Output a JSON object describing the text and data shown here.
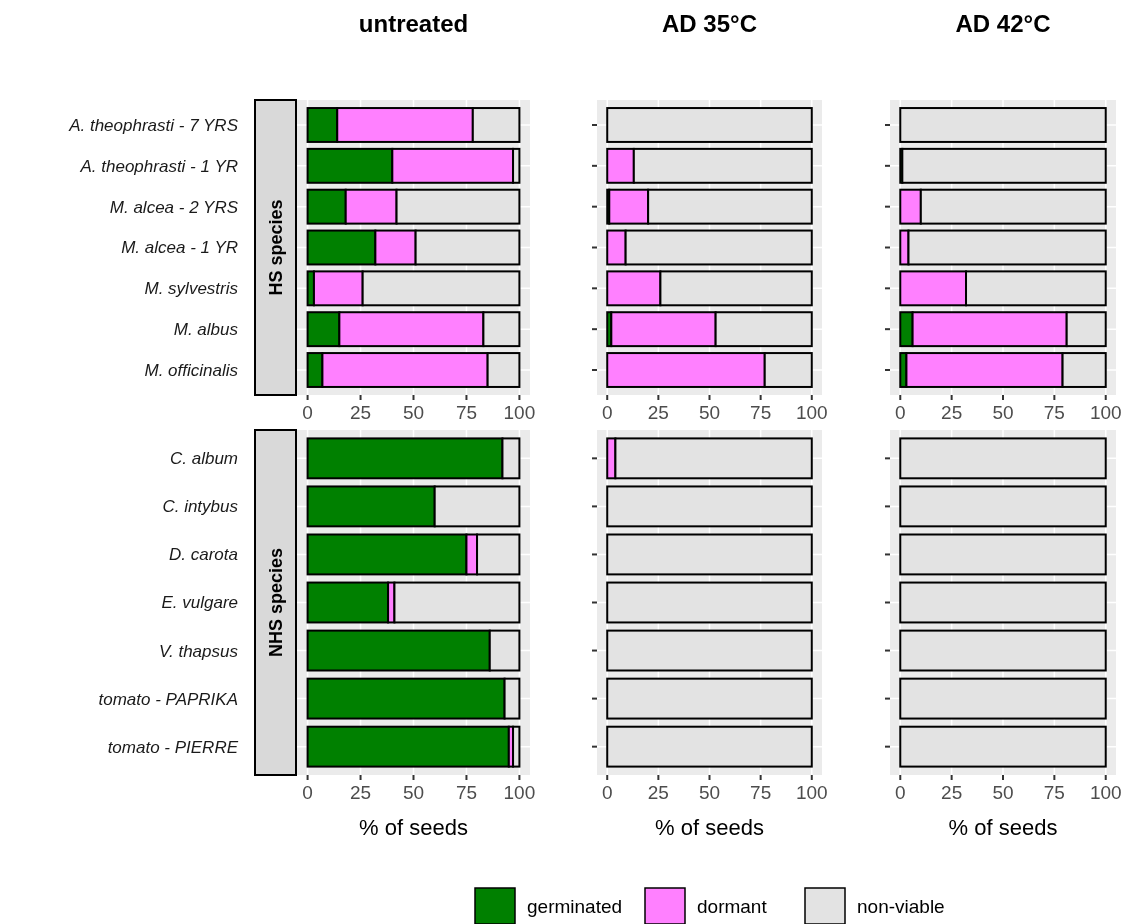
{
  "chart_data": [
    {
      "type": "bar",
      "orientation": "horizontal",
      "stacked": true,
      "title": "untreated",
      "ylabel": "HS species",
      "categories": [
        "A. theophrasti - 7 YRS",
        "A. theophrasti - 1 YR",
        "M. alcea - 2 YRS",
        "M. alcea - 1 YR",
        "M. sylvestris",
        "M. albus",
        "M. officinalis"
      ],
      "xlim": [
        -5,
        105
      ],
      "xticks": [
        0,
        25,
        50,
        75,
        100
      ],
      "grid": true,
      "legend": "bottom",
      "series": [
        {
          "name": "germinated",
          "color": "#008000",
          "values": [
            14,
            40,
            18,
            32,
            3,
            15,
            7
          ]
        },
        {
          "name": "dormant",
          "color": "#ff80ff",
          "values": [
            64,
            57,
            24,
            19,
            23,
            68,
            78
          ]
        },
        {
          "name": "non-viable",
          "color": "#e3e3e3",
          "values": [
            22,
            3,
            58,
            49,
            74,
            17,
            15
          ]
        }
      ]
    },
    {
      "type": "bar",
      "orientation": "horizontal",
      "stacked": true,
      "title": "AD 35°C",
      "categories": [
        null,
        null,
        null,
        null,
        null,
        null,
        null
      ],
      "tick_labels": "x",
      "xlim": [
        -5,
        105
      ],
      "xticks": [
        0,
        25,
        50,
        75,
        100
      ],
      "grid": true,
      "series": [
        {
          "color": "#008000",
          "values": [
            0,
            0,
            1,
            0,
            0,
            2,
            0
          ]
        },
        {
          "color": "#ff80ff",
          "values": [
            0,
            13,
            19,
            9,
            26,
            51,
            77
          ]
        },
        {
          "color": "#e3e3e3",
          "values": [
            100,
            87,
            80,
            91,
            74,
            47,
            23
          ]
        }
      ]
    },
    {
      "type": "bar",
      "orientation": "horizontal",
      "stacked": true,
      "title": "AD 42°C",
      "categories": [
        null,
        null,
        null,
        null,
        null,
        null,
        null
      ],
      "tick_labels": "x",
      "xlim": [
        -5,
        105
      ],
      "xticks": [
        0,
        25,
        50,
        75,
        100
      ],
      "grid": true,
      "series": [
        {
          "color": "#008000",
          "values": [
            0,
            1,
            0,
            0,
            0,
            6,
            3
          ]
        },
        {
          "color": "#ff80ff",
          "values": [
            0,
            0,
            10,
            4,
            32,
            75,
            76
          ]
        },
        {
          "color": "#e3e3e3",
          "values": [
            100,
            99,
            90,
            96,
            68,
            19,
            21
          ]
        }
      ]
    },
    {
      "type": "bar",
      "orientation": "horizontal",
      "stacked": true,
      "ylabel": "NHS species",
      "xlabel": "% of seeds",
      "categories": [
        "C. album",
        "C. intybus",
        "D. carota",
        "E. vulgare",
        "V. thapsus",
        "tomato - PAPRIKA",
        "tomato - PIERRE"
      ],
      "xlim": [
        -5,
        105
      ],
      "xticks": [
        0,
        25,
        50,
        75,
        100
      ],
      "grid": true,
      "series": [
        {
          "color": "#008000",
          "values": [
            92,
            60,
            75,
            38,
            86,
            93,
            95
          ]
        },
        {
          "color": "#ff80ff",
          "values": [
            0,
            0,
            5,
            3,
            0,
            0,
            2
          ]
        },
        {
          "color": "#e3e3e3",
          "values": [
            8,
            40,
            20,
            59,
            14,
            7,
            3
          ]
        }
      ]
    },
    {
      "type": "bar",
      "orientation": "horizontal",
      "stacked": true,
      "xlabel": "% of seeds",
      "categories": [
        null,
        null,
        null,
        null,
        null,
        null,
        null
      ],
      "tick_labels": "x",
      "xlim": [
        -5,
        105
      ],
      "xticks": [
        0,
        25,
        50,
        75,
        100
      ],
      "grid": true,
      "series": [
        {
          "color": "#008000",
          "values": [
            0,
            0,
            0,
            0,
            0,
            0,
            0
          ]
        },
        {
          "color": "#ff80ff",
          "values": [
            4,
            0,
            0,
            0,
            0,
            0,
            0
          ]
        },
        {
          "color": "#e3e3e3",
          "values": [
            96,
            100,
            100,
            100,
            100,
            100,
            100
          ]
        }
      ]
    },
    {
      "type": "bar",
      "orientation": "horizontal",
      "stacked": true,
      "xlabel": "% of seeds",
      "categories": [
        null,
        null,
        null,
        null,
        null,
        null,
        null
      ],
      "tick_labels": "x",
      "xlim": [
        -5,
        105
      ],
      "xticks": [
        0,
        25,
        50,
        75,
        100
      ],
      "grid": true,
      "series": [
        {
          "color": "#008000",
          "values": [
            0,
            0,
            0,
            0,
            0,
            0,
            0
          ]
        },
        {
          "color": "#ff80ff",
          "values": [
            0,
            0,
            0,
            0,
            0,
            0,
            0
          ]
        },
        {
          "color": "#e3e3e3",
          "values": [
            100,
            100,
            100,
            100,
            100,
            100,
            100
          ]
        }
      ]
    }
  ]
}
